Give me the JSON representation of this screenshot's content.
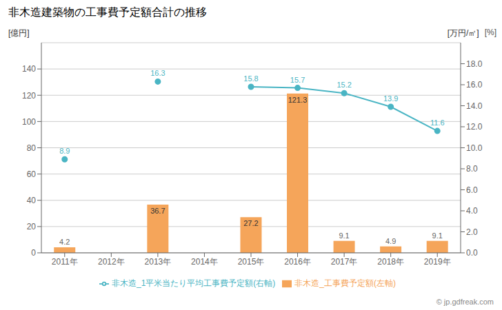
{
  "chart_data": {
    "type": "bar",
    "title": "非木造建築物の工事費予定額合計の推移",
    "categories": [
      "2011年",
      "2012年",
      "2013年",
      "2014年",
      "2015年",
      "2016年",
      "2017年",
      "2018年",
      "2019年"
    ],
    "series": [
      {
        "name": "非木造_工事費予定額(左軸)",
        "type": "bar",
        "color": "#f5a55a",
        "values": [
          4.2,
          0,
          36.7,
          0,
          27.2,
          121.3,
          9.1,
          4.9,
          9.1
        ],
        "data_labels": true,
        "value_labels": [
          "4.2",
          null,
          "36.7",
          null,
          "27.2",
          "121.3",
          "9.1",
          "4.9",
          "9.1"
        ]
      },
      {
        "name": "非木造_1平米当たり平均工事費予定額(右軸)",
        "type": "line",
        "color": "#4ab5c4",
        "axis": "y2",
        "marker": "circle",
        "values": [
          8.9,
          null,
          16.3,
          null,
          15.8,
          15.7,
          15.2,
          13.9,
          11.6
        ],
        "data_labels": true
      }
    ],
    "ylabel": "[億円]",
    "y2label": "[万円/㎡]",
    "annotations": [
      "[%]",
      "© jp.gdfreak.com"
    ],
    "ylim": [
      0,
      160
    ],
    "yticks": [
      0,
      20,
      40,
      60,
      80,
      100,
      120,
      140
    ],
    "y2lim": [
      0,
      20
    ],
    "y2ticks": [
      {
        "value": 0.0,
        "label": "0.0"
      },
      {
        "value": 2.0,
        "label": "2.0"
      },
      {
        "value": 4.0,
        "label": "4.0"
      },
      {
        "value": 6.0,
        "label": "6.0"
      },
      {
        "value": 8.0,
        "label": "8.0"
      },
      {
        "value": 10.0,
        "label": "10.0"
      },
      {
        "value": 12.0,
        "label": "12.0"
      },
      {
        "value": 14.0,
        "label": "14.0"
      },
      {
        "value": 16.0,
        "label": "16.0"
      },
      {
        "value": 18.0,
        "label": "18.0"
      }
    ],
    "grid": true,
    "legend": "bottom"
  }
}
